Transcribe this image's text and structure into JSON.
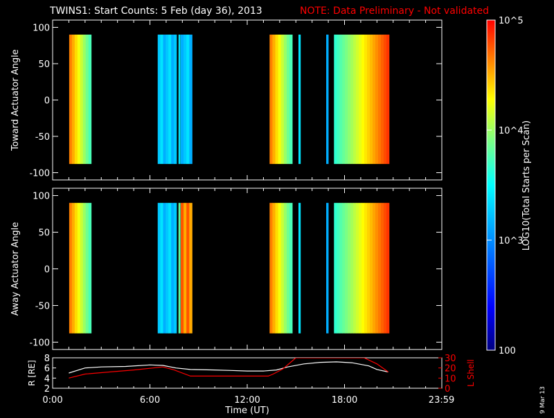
{
  "header": {
    "title": "TWINS1: Start Counts:  5 Feb (day  36), 2013",
    "note": "NOTE: Data Preliminary - Not validated",
    "note_color": "#ff0000"
  },
  "side_stamp": "9 Mar 13",
  "colorbar": {
    "label": "LOG10(Total Starts per Scan)",
    "ticks": [
      {
        "value": 100,
        "label": "100"
      },
      {
        "value": 1000,
        "label": "10^3"
      },
      {
        "value": 10000,
        "label": "10^4"
      },
      {
        "value": 100000,
        "label": "10^5"
      }
    ],
    "range": [
      100,
      100000
    ],
    "scale": "log"
  },
  "chart_data": [
    {
      "type": "heatmap",
      "name": "toward",
      "ylabel": "Toward Actuator Angle",
      "ylim": [
        -110,
        110
      ],
      "yticks": [
        100,
        50,
        0,
        -50,
        -100
      ],
      "xlim": [
        0,
        24
      ],
      "angle_range": [
        -88,
        90
      ],
      "bands": [
        {
          "start": 1.02,
          "end": 2.38,
          "profile": "edge-high"
        },
        {
          "start": 6.48,
          "end": 7.64,
          "profile": "low"
        },
        {
          "start": 7.76,
          "end": 7.87,
          "profile": "low"
        },
        {
          "start": 7.9,
          "end": 8.6,
          "profile": "low"
        },
        {
          "start": 13.38,
          "end": 14.78,
          "profile": "edge-high"
        },
        {
          "start": 15.16,
          "end": 15.28,
          "profile": "low"
        },
        {
          "start": 16.87,
          "end": 17.0,
          "profile": "low"
        },
        {
          "start": 17.35,
          "end": 20.75,
          "profile": "ramp"
        }
      ]
    },
    {
      "type": "heatmap",
      "name": "away",
      "ylabel": "Away Actuator Angle",
      "ylim": [
        -110,
        110
      ],
      "yticks": [
        100,
        50,
        0,
        -50,
        -100
      ],
      "xlim": [
        0,
        24
      ],
      "angle_range": [
        -88,
        90
      ],
      "bands": [
        {
          "start": 1.02,
          "end": 2.38,
          "profile": "edge-high"
        },
        {
          "start": 6.48,
          "end": 7.64,
          "profile": "low"
        },
        {
          "start": 7.76,
          "end": 7.87,
          "profile": "mid"
        },
        {
          "start": 7.9,
          "end": 8.6,
          "profile": "high"
        },
        {
          "start": 13.38,
          "end": 14.78,
          "profile": "edge-high"
        },
        {
          "start": 15.16,
          "end": 15.28,
          "profile": "low"
        },
        {
          "start": 16.87,
          "end": 17.0,
          "profile": "low"
        },
        {
          "start": 17.35,
          "end": 20.75,
          "profile": "ramp"
        }
      ]
    },
    {
      "type": "line",
      "name": "orbit",
      "ylabel_left": "R [RE]",
      "ylabel_right": "L Shell",
      "left_ylim": [
        2,
        8
      ],
      "left_ticks": [
        2,
        4,
        6,
        8
      ],
      "right_ylim": [
        0,
        30
      ],
      "right_ticks": [
        0,
        10,
        20,
        30
      ],
      "xlabel": "Time (UT)",
      "xticks": [
        {
          "value": 0,
          "label": "0:00"
        },
        {
          "value": 6,
          "label": "6:00"
        },
        {
          "value": 12,
          "label": "12:00"
        },
        {
          "value": 18,
          "label": "18:00"
        },
        {
          "value": 23.98,
          "label": "23:59"
        }
      ],
      "series": [
        {
          "axis": "left",
          "color": "#ffffff",
          "x": [
            1.0,
            2.0,
            3.0,
            4.5,
            6.0,
            6.8,
            7.6,
            8.5,
            10,
            11,
            12,
            13,
            13.8,
            14.5,
            15.5,
            16.5,
            17.5,
            18.5,
            19.5,
            20.0,
            20.7
          ],
          "y": [
            5.0,
            6.0,
            6.2,
            6.3,
            6.6,
            6.5,
            6.0,
            5.7,
            5.6,
            5.5,
            5.4,
            5.4,
            5.6,
            6.2,
            6.8,
            7.1,
            7.2,
            7.0,
            6.4,
            5.7,
            5.2
          ]
        },
        {
          "axis": "right",
          "color": "#ff0000",
          "x": [
            1.0,
            2.0,
            3.5,
            5.0,
            6.2,
            6.8,
            7.5,
            8.5,
            10,
            12,
            13.3,
            13.6,
            14.2,
            15.0,
            19.2,
            20.0,
            20.7
          ],
          "y": [
            10,
            14,
            16,
            18,
            20,
            21,
            18,
            12,
            12,
            12,
            12,
            14,
            19,
            30,
            30,
            24,
            16
          ]
        }
      ]
    }
  ],
  "colors": {
    "background": "#000000",
    "axes": "#ffffff",
    "orbit_r": "#ffffff",
    "orbit_lshell": "#ff0000"
  }
}
